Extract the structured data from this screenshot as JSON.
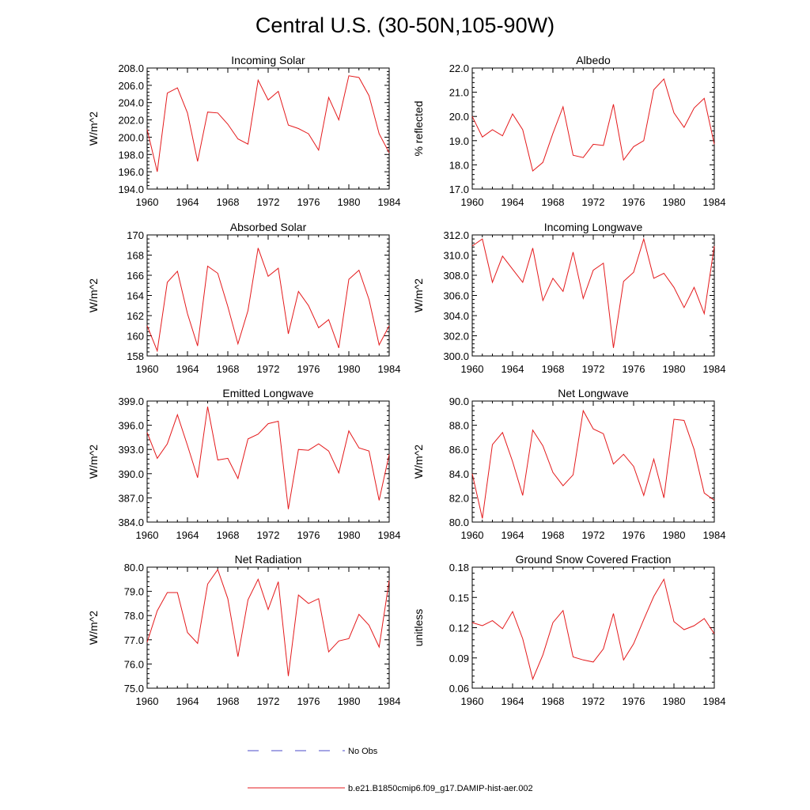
{
  "figure": {
    "title": "Central U.S. (30-50N,105-90W)",
    "legend": [
      {
        "label": "No Obs",
        "color": "#4b4bc8",
        "style": "dashed"
      },
      {
        "label": "b.e21.B1850cmip6.f09_g17.DAMIP-hist-aer.002",
        "color": "#e41a1c",
        "style": "solid"
      }
    ]
  },
  "chart_data": [
    {
      "type": "line",
      "title": "Incoming Solar",
      "ylabel": "W/m^2",
      "xlim": [
        1960,
        1984
      ],
      "ylim": [
        194,
        208
      ],
      "xticks": [
        1960,
        1964,
        1968,
        1972,
        1976,
        1980,
        1984
      ],
      "yticks": [
        "194.0",
        "196.0",
        "198.0",
        "200.0",
        "202.0",
        "204.0",
        "206.0",
        "208.0"
      ],
      "x": [
        1960,
        1961,
        1962,
        1963,
        1964,
        1965,
        1966,
        1967,
        1968,
        1969,
        1970,
        1971,
        1972,
        1973,
        1974,
        1975,
        1976,
        1977,
        1978,
        1979,
        1980,
        1981,
        1982,
        1983,
        1984
      ],
      "series": [
        {
          "name": "b.e21.B1850cmip6.f09_g17.DAMIP-hist-aer.002",
          "color": "#e41a1c",
          "values": [
            200.9,
            196.0,
            205.1,
            205.7,
            202.8,
            197.2,
            202.9,
            202.8,
            201.5,
            199.8,
            199.2,
            206.6,
            204.3,
            205.3,
            201.4,
            201.0,
            200.4,
            198.5,
            204.6,
            202.0,
            207.1,
            206.9,
            204.8,
            200.4,
            198.2
          ]
        }
      ]
    },
    {
      "type": "line",
      "title": "Albedo",
      "ylabel": "% reflected",
      "xlim": [
        1960,
        1984
      ],
      "ylim": [
        17,
        22
      ],
      "xticks": [
        1960,
        1964,
        1968,
        1972,
        1976,
        1980,
        1984
      ],
      "yticks": [
        "17.0",
        "18.0",
        "19.0",
        "20.0",
        "21.0",
        "22.0"
      ],
      "x": [
        1960,
        1961,
        1962,
        1963,
        1964,
        1965,
        1966,
        1967,
        1968,
        1969,
        1970,
        1971,
        1972,
        1973,
        1974,
        1975,
        1976,
        1977,
        1978,
        1979,
        1980,
        1981,
        1982,
        1983,
        1984
      ],
      "series": [
        {
          "name": "b.e21.B1850cmip6.f09_g17.DAMIP-hist-aer.002",
          "color": "#e41a1c",
          "values": [
            20.0,
            19.15,
            19.45,
            19.2,
            20.1,
            19.45,
            17.75,
            18.1,
            19.3,
            20.4,
            18.4,
            18.3,
            18.85,
            18.8,
            20.5,
            18.2,
            18.75,
            19.0,
            21.1,
            21.55,
            20.15,
            19.55,
            20.35,
            20.75,
            18.85
          ]
        }
      ]
    },
    {
      "type": "line",
      "title": "Absorbed Solar",
      "ylabel": "W/m^2",
      "xlim": [
        1960,
        1984
      ],
      "ylim": [
        158,
        170
      ],
      "xticks": [
        1960,
        1964,
        1968,
        1972,
        1976,
        1980,
        1984
      ],
      "yticks": [
        "158",
        "160",
        "162",
        "164",
        "166",
        "168",
        "170"
      ],
      "x": [
        1960,
        1961,
        1962,
        1963,
        1964,
        1965,
        1966,
        1967,
        1968,
        1969,
        1970,
        1971,
        1972,
        1973,
        1974,
        1975,
        1976,
        1977,
        1978,
        1979,
        1980,
        1981,
        1982,
        1983,
        1984
      ],
      "series": [
        {
          "name": "b.e21.B1850cmip6.f09_g17.DAMIP-hist-aer.002",
          "color": "#e41a1c",
          "values": [
            161.0,
            158.5,
            165.3,
            166.4,
            162.2,
            159.0,
            166.9,
            166.2,
            162.9,
            159.2,
            162.5,
            168.7,
            165.9,
            166.7,
            160.2,
            164.4,
            163.0,
            160.8,
            161.6,
            158.8,
            165.6,
            166.5,
            163.6,
            159.1,
            161.0
          ]
        }
      ]
    },
    {
      "type": "line",
      "title": "Incoming Longwave",
      "ylabel": "W/m^2",
      "xlim": [
        1960,
        1984
      ],
      "ylim": [
        300,
        312
      ],
      "xticks": [
        1960,
        1964,
        1968,
        1972,
        1976,
        1980,
        1984
      ],
      "yticks": [
        "300.0",
        "302.0",
        "304.0",
        "306.0",
        "308.0",
        "310.0",
        "312.0"
      ],
      "x": [
        1960,
        1961,
        1962,
        1963,
        1964,
        1965,
        1966,
        1967,
        1968,
        1969,
        1970,
        1971,
        1972,
        1973,
        1974,
        1975,
        1976,
        1977,
        1978,
        1979,
        1980,
        1981,
        1982,
        1983,
        1984
      ],
      "series": [
        {
          "name": "b.e21.B1850cmip6.f09_g17.DAMIP-hist-aer.002",
          "color": "#e41a1c",
          "values": [
            310.9,
            311.6,
            307.3,
            309.9,
            308.6,
            307.3,
            310.7,
            305.5,
            307.7,
            306.4,
            310.3,
            305.7,
            308.5,
            309.2,
            300.8,
            307.4,
            308.3,
            311.6,
            307.7,
            308.2,
            306.8,
            304.8,
            306.8,
            304.2,
            310.9
          ]
        }
      ]
    },
    {
      "type": "line",
      "title": "Emitted Longwave",
      "ylabel": "W/m^2",
      "xlim": [
        1960,
        1984
      ],
      "ylim": [
        384,
        399
      ],
      "xticks": [
        1960,
        1964,
        1968,
        1972,
        1976,
        1980,
        1984
      ],
      "yticks": [
        "384.0",
        "387.0",
        "390.0",
        "393.0",
        "396.0",
        "399.0"
      ],
      "x": [
        1960,
        1961,
        1962,
        1963,
        1964,
        1965,
        1966,
        1967,
        1968,
        1969,
        1970,
        1971,
        1972,
        1973,
        1974,
        1975,
        1976,
        1977,
        1978,
        1979,
        1980,
        1981,
        1982,
        1983,
        1984
      ],
      "series": [
        {
          "name": "b.e21.B1850cmip6.f09_g17.DAMIP-hist-aer.002",
          "color": "#e41a1c",
          "values": [
            395.1,
            391.9,
            393.7,
            397.3,
            393.5,
            389.5,
            398.3,
            391.7,
            391.9,
            389.4,
            394.3,
            394.9,
            396.2,
            396.5,
            385.6,
            393.0,
            392.9,
            393.7,
            392.8,
            390.1,
            395.3,
            393.2,
            392.8,
            386.7,
            392.4
          ]
        }
      ]
    },
    {
      "type": "line",
      "title": "Net Longwave",
      "ylabel": "W/m^2",
      "xlim": [
        1960,
        1984
      ],
      "ylim": [
        80,
        90
      ],
      "xticks": [
        1960,
        1964,
        1968,
        1972,
        1976,
        1980,
        1984
      ],
      "yticks": [
        "80.0",
        "82.0",
        "84.0",
        "86.0",
        "88.0",
        "90.0"
      ],
      "x": [
        1960,
        1961,
        1962,
        1963,
        1964,
        1965,
        1966,
        1967,
        1968,
        1969,
        1970,
        1971,
        1972,
        1973,
        1974,
        1975,
        1976,
        1977,
        1978,
        1979,
        1980,
        1981,
        1982,
        1983,
        1984
      ],
      "series": [
        {
          "name": "b.e21.B1850cmip6.f09_g17.DAMIP-hist-aer.002",
          "color": "#e41a1c",
          "values": [
            84.0,
            80.3,
            86.4,
            87.4,
            85.0,
            82.2,
            87.6,
            86.3,
            84.1,
            83.0,
            83.9,
            89.2,
            87.7,
            87.3,
            84.8,
            85.6,
            84.6,
            82.2,
            85.2,
            82.0,
            88.5,
            88.4,
            86.0,
            82.4,
            81.8
          ]
        }
      ]
    },
    {
      "type": "line",
      "title": "Net Radiation",
      "ylabel": "W/m^2",
      "xlim": [
        1960,
        1984
      ],
      "ylim": [
        75,
        80
      ],
      "xticks": [
        1960,
        1964,
        1968,
        1972,
        1976,
        1980,
        1984
      ],
      "yticks": [
        "75.0",
        "76.0",
        "77.0",
        "78.0",
        "79.0",
        "80.0"
      ],
      "x": [
        1960,
        1961,
        1962,
        1963,
        1964,
        1965,
        1966,
        1967,
        1968,
        1969,
        1970,
        1971,
        1972,
        1973,
        1974,
        1975,
        1976,
        1977,
        1978,
        1979,
        1980,
        1981,
        1982,
        1983,
        1984
      ],
      "series": [
        {
          "name": "b.e21.B1850cmip6.f09_g17.DAMIP-hist-aer.002",
          "color": "#e41a1c",
          "values": [
            76.9,
            78.2,
            78.95,
            78.95,
            77.3,
            76.85,
            79.3,
            79.9,
            78.7,
            76.3,
            78.65,
            79.5,
            78.25,
            79.4,
            75.5,
            78.85,
            78.5,
            78.7,
            76.5,
            76.95,
            77.05,
            78.05,
            77.6,
            76.7,
            79.45
          ]
        }
      ]
    },
    {
      "type": "line",
      "title": "Ground Snow Covered Fraction",
      "ylabel": "unitless",
      "xlim": [
        1960,
        1984
      ],
      "ylim": [
        0.06,
        0.18
      ],
      "xticks": [
        1960,
        1964,
        1968,
        1972,
        1976,
        1980,
        1984
      ],
      "yticks": [
        "0.06",
        "0.09",
        "0.12",
        "0.15",
        "0.18"
      ],
      "x": [
        1960,
        1961,
        1962,
        1963,
        1964,
        1965,
        1966,
        1967,
        1968,
        1969,
        1970,
        1971,
        1972,
        1973,
        1974,
        1975,
        1976,
        1977,
        1978,
        1979,
        1980,
        1981,
        1982,
        1983,
        1984
      ],
      "series": [
        {
          "name": "b.e21.B1850cmip6.f09_g17.DAMIP-hist-aer.002",
          "color": "#e41a1c",
          "values": [
            0.125,
            0.122,
            0.127,
            0.119,
            0.136,
            0.109,
            0.069,
            0.093,
            0.125,
            0.137,
            0.091,
            0.088,
            0.086,
            0.099,
            0.134,
            0.088,
            0.104,
            0.128,
            0.151,
            0.168,
            0.126,
            0.118,
            0.122,
            0.129,
            0.114
          ]
        }
      ]
    }
  ]
}
